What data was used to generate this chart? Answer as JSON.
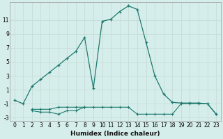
{
  "xlabel": "Humidex (Indice chaleur)",
  "background_color": "#d6eeeb",
  "grid_color": "#c8deda",
  "line_color": "#1e7a6e",
  "x_main": [
    0,
    1,
    2,
    3,
    4,
    5,
    6,
    7,
    8,
    9,
    10,
    11,
    12,
    13,
    14,
    15,
    16,
    17,
    18,
    19,
    20,
    21,
    22,
    23
  ],
  "y_main": [
    -0.5,
    -1.0,
    1.5,
    2.5,
    3.5,
    4.5,
    5.5,
    6.5,
    8.5,
    1.2,
    10.8,
    11.1,
    12.2,
    13.0,
    12.5,
    7.8,
    3.0,
    0.4,
    -0.8,
    -0.9,
    -0.9,
    -0.9,
    -1.0,
    -2.5
  ],
  "x_low1": [
    2,
    3,
    4,
    5,
    6,
    7,
    8,
    9,
    10,
    11,
    12,
    13,
    14,
    15,
    16,
    17,
    18,
    19,
    20,
    21,
    22,
    23
  ],
  "y_low1": [
    -2.0,
    -2.2,
    -2.2,
    -2.5,
    -2.0,
    -2.0,
    -1.5,
    -1.5,
    -1.5,
    -1.5,
    -1.5,
    -1.5,
    -2.5,
    -2.5,
    -2.5,
    -2.5,
    -2.5,
    -1.0,
    -1.0,
    -1.0,
    -1.0,
    -2.5
  ],
  "x_low2": [
    2,
    3,
    4,
    5,
    6,
    7,
    8
  ],
  "y_low2": [
    -1.8,
    -1.8,
    -1.8,
    -1.5,
    -1.5,
    -1.5,
    -1.5
  ],
  "xlim": [
    -0.5,
    23.5
  ],
  "ylim": [
    -3.5,
    13.5
  ],
  "yticks": [
    -3,
    -1,
    1,
    3,
    5,
    7,
    9,
    11
  ],
  "xticks": [
    0,
    1,
    2,
    3,
    4,
    5,
    6,
    7,
    8,
    9,
    10,
    11,
    12,
    13,
    14,
    15,
    16,
    17,
    18,
    19,
    20,
    21,
    22,
    23
  ],
  "tick_fontsize": 5.5,
  "xlabel_fontsize": 6.5
}
